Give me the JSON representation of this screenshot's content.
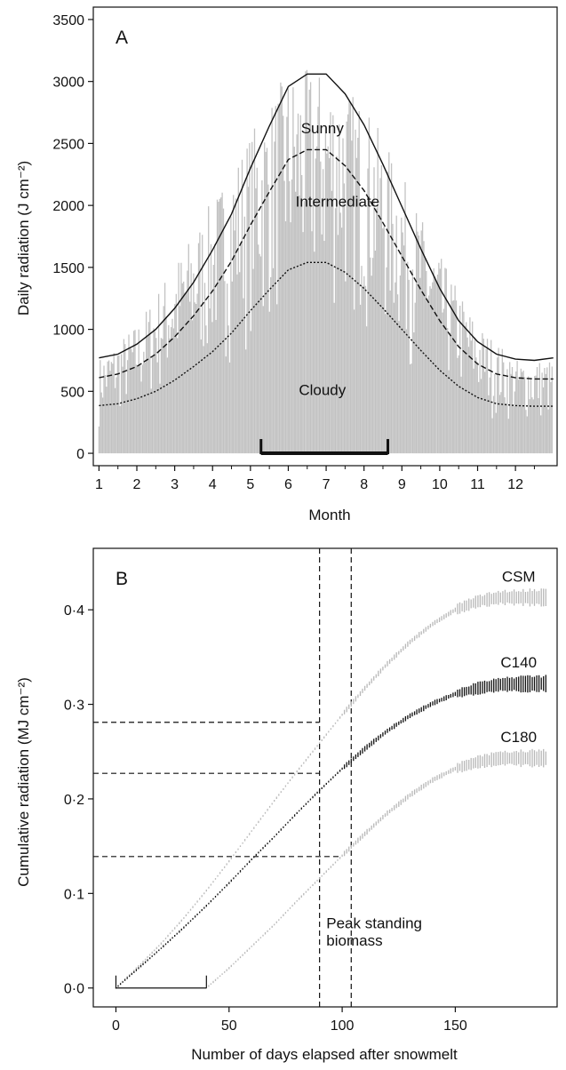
{
  "chart_data": [
    {
      "type": "bar",
      "panel_label": "A",
      "xlabel": "Month",
      "ylabel": "Daily radiation (J cm⁻²)",
      "x_ticks": [
        "1",
        "2",
        "3",
        "4",
        "5",
        "6",
        "7",
        "8",
        "9",
        "10",
        "11",
        "12"
      ],
      "xlim": [
        0.85,
        13.1
      ],
      "ylim": [
        -100,
        3600
      ],
      "y_ticks": [
        "0",
        "500",
        "1000",
        "1500",
        "2000",
        "2500",
        "3000",
        "3500"
      ],
      "grid": false,
      "bars_color": "#c2c2c2",
      "bars_description": "daily radiation, one bar per day of year",
      "monthly_envelope": {
        "month": [
          1,
          2,
          3,
          4,
          5,
          6,
          7,
          8,
          9,
          10,
          11,
          12
        ],
        "daily_min": [
          30,
          60,
          80,
          130,
          210,
          260,
          300,
          280,
          200,
          120,
          60,
          30
        ],
        "daily_max": [
          770,
          1050,
          1550,
          2050,
          2600,
          3100,
          3100,
          2850,
          2250,
          1600,
          1050,
          760
        ]
      },
      "series": [
        {
          "name": "Sunny",
          "line_style": "solid",
          "x": [
            1,
            1.5,
            2,
            2.5,
            3,
            3.5,
            4,
            4.5,
            5,
            5.5,
            6,
            6.5,
            7,
            7.5,
            8,
            8.5,
            9,
            9.5,
            10,
            10.5,
            11,
            11.5,
            12,
            12.5,
            13
          ],
          "values": [
            770,
            800,
            880,
            1000,
            1170,
            1380,
            1640,
            1930,
            2300,
            2640,
            2960,
            3060,
            3060,
            2900,
            2650,
            2330,
            1990,
            1650,
            1330,
            1070,
            900,
            800,
            760,
            750,
            770
          ]
        },
        {
          "name": "Intermediate",
          "line_style": "dashed",
          "x": [
            1,
            1.5,
            2,
            2.5,
            3,
            3.5,
            4,
            4.5,
            5,
            5.5,
            6,
            6.5,
            7,
            7.5,
            8,
            8.5,
            9,
            9.5,
            10,
            10.5,
            11,
            11.5,
            12,
            12.5,
            13
          ],
          "values": [
            610,
            640,
            700,
            800,
            940,
            1110,
            1310,
            1550,
            1840,
            2110,
            2370,
            2450,
            2450,
            2320,
            2120,
            1860,
            1590,
            1320,
            1070,
            860,
            720,
            640,
            610,
            600,
            600
          ]
        },
        {
          "name": "Cloudy",
          "line_style": "dotted",
          "x": [
            1,
            1.5,
            2,
            2.5,
            3,
            3.5,
            4,
            4.5,
            5,
            5.5,
            6,
            6.5,
            7,
            7.5,
            8,
            8.5,
            9,
            9.5,
            10,
            10.5,
            11,
            11.5,
            12,
            12.5,
            13
          ],
          "values": [
            385,
            400,
            440,
            500,
            590,
            700,
            820,
            970,
            1150,
            1320,
            1480,
            1540,
            1540,
            1460,
            1330,
            1170,
            1000,
            830,
            670,
            540,
            450,
            400,
            385,
            380,
            380
          ]
        }
      ],
      "series_labels": [
        {
          "text": "Sunny",
          "x": 6.9,
          "y": 2580
        },
        {
          "text": "Intermediate",
          "x": 7.3,
          "y": 1990
        },
        {
          "text": "Cloudy",
          "x": 6.9,
          "y": 470
        }
      ],
      "season_bracket": {
        "start_month": 5.28,
        "end_month": 8.63,
        "y": 0
      }
    },
    {
      "type": "line",
      "panel_label": "B",
      "xlabel": "Number of days elapsed after snowmelt",
      "ylabel": "Cumulative radiation (MJ cm⁻²)",
      "xlim": [
        -10,
        195
      ],
      "ylim": [
        -0.02,
        0.465
      ],
      "x_ticks": [
        {
          "value": 0,
          "label": "0"
        },
        {
          "value": 50,
          "label": "50"
        },
        {
          "value": 100,
          "label": "100"
        },
        {
          "value": 150,
          "label": "150"
        }
      ],
      "y_ticks": [
        {
          "value": 0.0,
          "label": "0·0"
        },
        {
          "value": 0.1,
          "label": "0·1"
        },
        {
          "value": 0.2,
          "label": "0·2"
        },
        {
          "value": 0.3,
          "label": "0·3"
        },
        {
          "value": 0.4,
          "label": "0·4"
        }
      ],
      "grid": false,
      "series": [
        {
          "name": "CSM",
          "color": "#b8b8b8",
          "start_day": 0,
          "x": [
            0,
            10,
            20,
            30,
            40,
            50,
            60,
            70,
            80,
            90,
            100,
            110,
            120,
            130,
            140,
            150,
            160,
            170,
            190
          ],
          "values": [
            0.0,
            0.023,
            0.047,
            0.074,
            0.103,
            0.134,
            0.166,
            0.198,
            0.229,
            0.259,
            0.289,
            0.317,
            0.343,
            0.366,
            0.385,
            0.4,
            0.409,
            0.413,
            0.413
          ]
        },
        {
          "name": "C140",
          "color": "#111111",
          "start_day": 0,
          "x": [
            0,
            10,
            20,
            30,
            40,
            50,
            60,
            70,
            80,
            90,
            100,
            110,
            120,
            130,
            140,
            150,
            160,
            170,
            190
          ],
          "values": [
            0.0,
            0.021,
            0.042,
            0.064,
            0.087,
            0.111,
            0.136,
            0.16,
            0.185,
            0.209,
            0.232,
            0.253,
            0.272,
            0.288,
            0.301,
            0.311,
            0.317,
            0.321,
            0.322
          ]
        },
        {
          "name": "C180",
          "color": "#b8b8b8",
          "start_day": 40,
          "x": [
            40,
            50,
            60,
            70,
            80,
            90,
            100,
            110,
            120,
            130,
            140,
            150,
            160,
            170,
            190
          ],
          "values": [
            0.0,
            0.021,
            0.044,
            0.067,
            0.092,
            0.116,
            0.14,
            0.163,
            0.185,
            0.204,
            0.22,
            0.232,
            0.239,
            0.243,
            0.243
          ]
        }
      ],
      "vertical_lines": [
        {
          "x": 90
        },
        {
          "x": 104
        }
      ],
      "horizontal_lines": [
        {
          "y": 0.281
        },
        {
          "y": 0.227
        },
        {
          "y": 0.139
        }
      ],
      "annotation": {
        "line1": "Peak standing",
        "line2": "biomass",
        "x": 93,
        "y1": 0.063,
        "y2": 0.045
      },
      "snowmelt_bracket": {
        "start_day": 0,
        "end_day": 40
      }
    }
  ]
}
